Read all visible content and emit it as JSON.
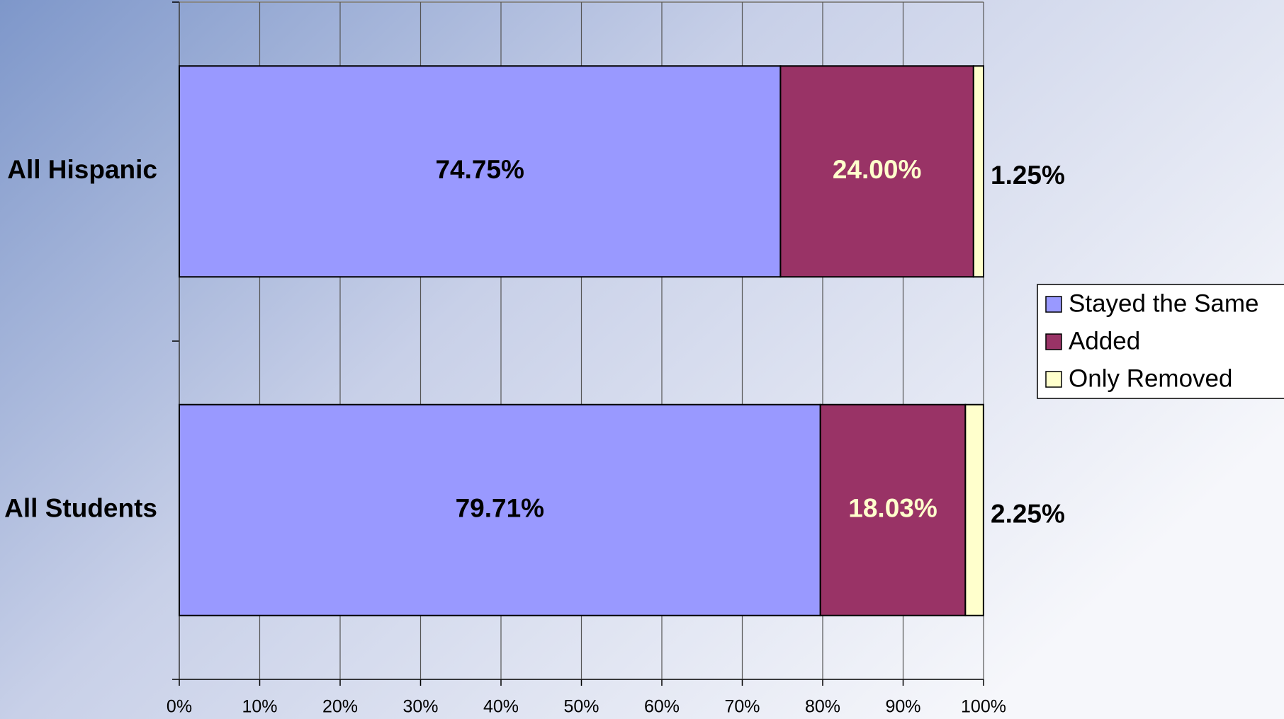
{
  "chart_data": {
    "type": "stacked-bar-horizontal",
    "categories": [
      "All Hispanic",
      "All Students"
    ],
    "series": [
      {
        "name": "Stayed the Same",
        "color": "#9999ff",
        "values": [
          74.75,
          79.71
        ],
        "value_labels": [
          "74.75%",
          "79.71%"
        ]
      },
      {
        "name": "Added",
        "color": "#993366",
        "values": [
          24.0,
          18.03
        ],
        "value_labels": [
          "24.00%",
          "18.03%"
        ]
      },
      {
        "name": "Only Removed",
        "color": "#ffffcc",
        "values": [
          1.25,
          2.25
        ],
        "value_labels": [
          "1.25%",
          "2.25%"
        ]
      }
    ],
    "xlim": [
      0,
      100
    ],
    "xticks": [
      {
        "value": 0,
        "label": "0%"
      },
      {
        "value": 10,
        "label": "10%"
      },
      {
        "value": 20,
        "label": "20%"
      },
      {
        "value": 30,
        "label": "30%"
      },
      {
        "value": 40,
        "label": "40%"
      },
      {
        "value": 50,
        "label": "50%"
      },
      {
        "value": 60,
        "label": "60%"
      },
      {
        "value": 70,
        "label": "70%"
      },
      {
        "value": 80,
        "label": "80%"
      },
      {
        "value": 90,
        "label": "90%"
      },
      {
        "value": 100,
        "label": "100%"
      }
    ],
    "grid": true,
    "legend": "right"
  }
}
